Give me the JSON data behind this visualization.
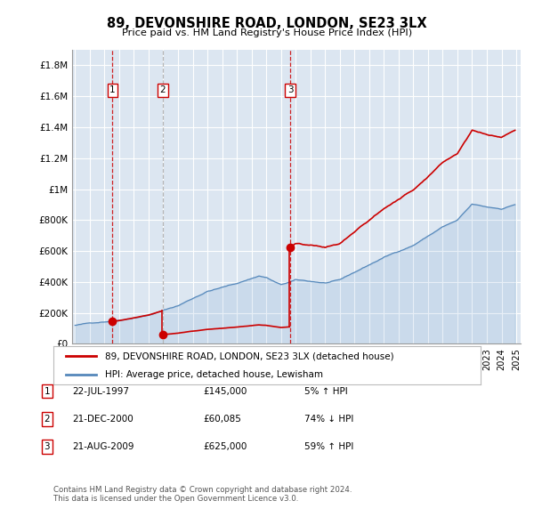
{
  "title": "89, DEVONSHIRE ROAD, LONDON, SE23 3LX",
  "subtitle": "Price paid vs. HM Land Registry's House Price Index (HPI)",
  "background_color": "#ffffff",
  "plot_bg_color": "#dce6f1",
  "grid_color": "#ffffff",
  "ylabel_ticks": [
    "£0",
    "£200K",
    "£400K",
    "£600K",
    "£800K",
    "£1M",
    "£1.2M",
    "£1.4M",
    "£1.6M",
    "£1.8M"
  ],
  "ytick_values": [
    0,
    200000,
    400000,
    600000,
    800000,
    1000000,
    1200000,
    1400000,
    1600000,
    1800000
  ],
  "ylim": [
    0,
    1900000
  ],
  "xlim_start": 1994.8,
  "xlim_end": 2025.3,
  "sale_dates": [
    1997.55,
    2000.97,
    2009.64
  ],
  "sale_prices": [
    145000,
    60085,
    625000
  ],
  "sale_labels": [
    "1",
    "2",
    "3"
  ],
  "transaction_color": "#cc0000",
  "hpi_color": "#6699cc",
  "hpi_line_color": "#5588bb",
  "legend_entries": [
    "89, DEVONSHIRE ROAD, LONDON, SE23 3LX (detached house)",
    "HPI: Average price, detached house, Lewisham"
  ],
  "table_data": [
    [
      "1",
      "22-JUL-1997",
      "£145,000",
      "5% ↑ HPI"
    ],
    [
      "2",
      "21-DEC-2000",
      "£60,085",
      "74% ↓ HPI"
    ],
    [
      "3",
      "21-AUG-2009",
      "£625,000",
      "59% ↑ HPI"
    ]
  ],
  "footer_text": "Contains HM Land Registry data © Crown copyright and database right 2024.\nThis data is licensed under the Open Government Licence v3.0."
}
